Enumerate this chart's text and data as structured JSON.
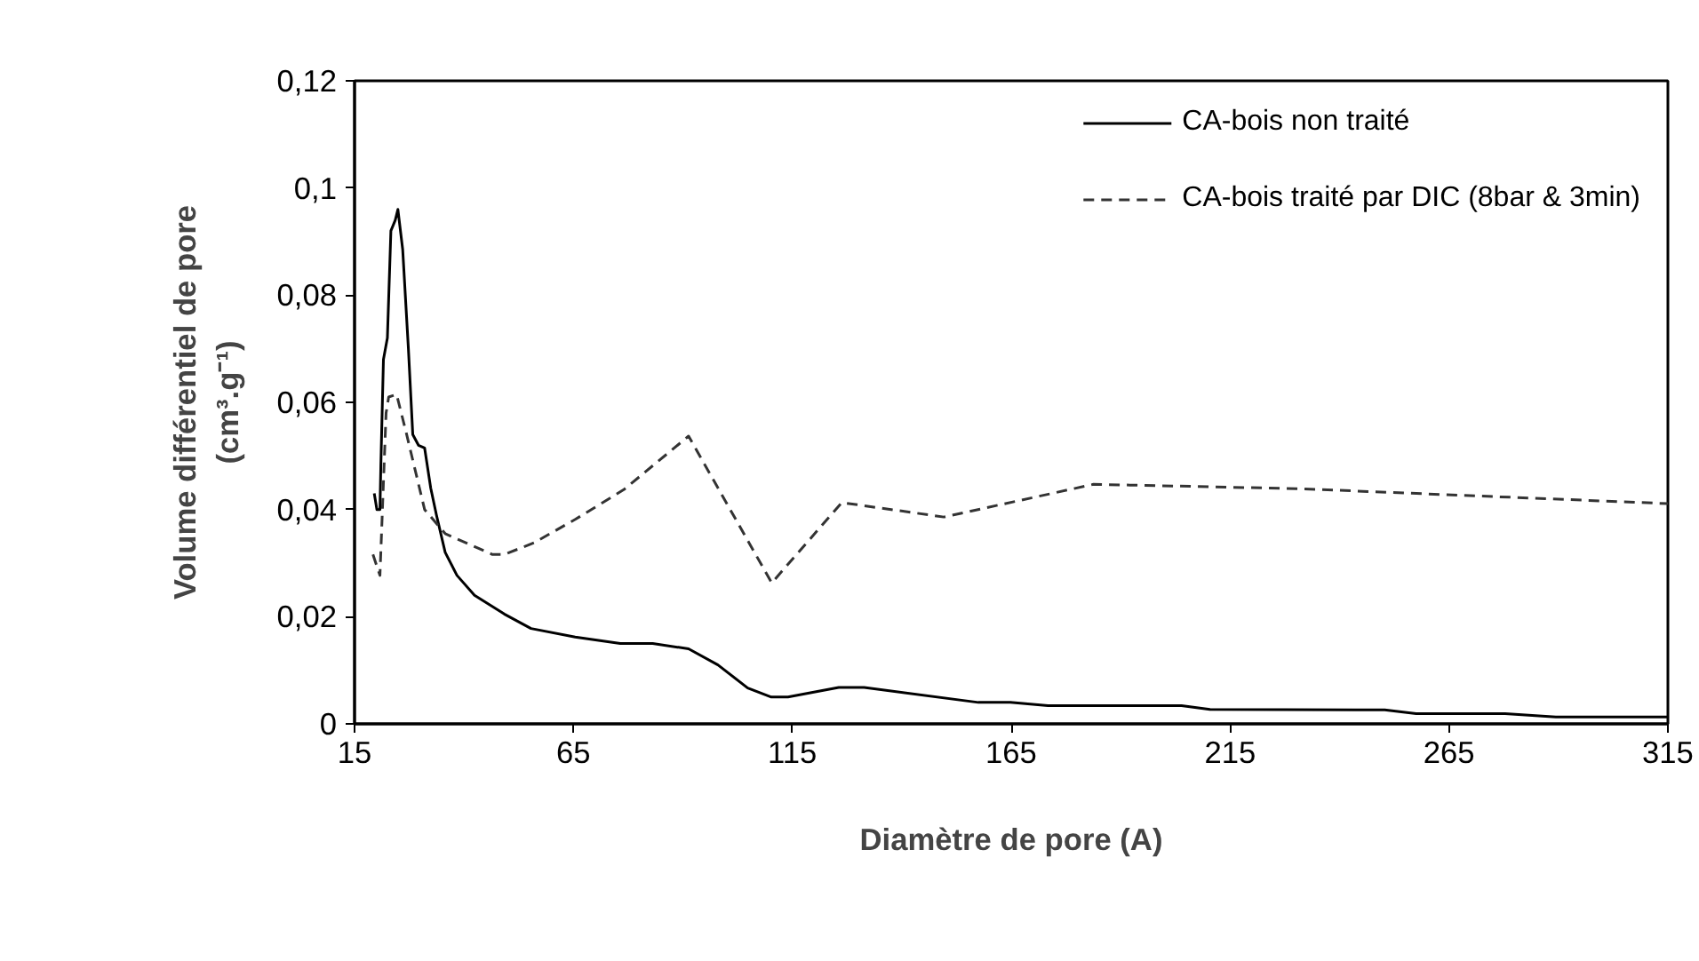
{
  "chart_data": {
    "type": "line",
    "xlabel": "Diamètre de pore (A)",
    "ylabel": "Volume différentiel de pore\n(cm³.g⁻¹)",
    "xlim": [
      15,
      315
    ],
    "ylim": [
      0,
      0.12
    ],
    "xticks": [
      15,
      65,
      115,
      165,
      215,
      265,
      315
    ],
    "yticks": [
      {
        "value": 0,
        "label": "0"
      },
      {
        "value": 0.02,
        "label": "0,02"
      },
      {
        "value": 0.04,
        "label": "0,04"
      },
      {
        "value": 0.06,
        "label": "0,06"
      },
      {
        "value": 0.08,
        "label": "0,08"
      },
      {
        "value": 0.1,
        "label": "0,1"
      },
      {
        "value": 0.12,
        "label": "0,12"
      }
    ],
    "grid": false,
    "legend": "top right",
    "series": [
      {
        "name": "CA-bois non traité",
        "color": "#000000",
        "line_style": "solid",
        "x": [
          19.5,
          20.1,
          20.8,
          21,
          21.6,
          22.5,
          23.3,
          24.3,
          24.9,
          26,
          27.3,
          28.3,
          29.6,
          31,
          32.4,
          33.7,
          35.7,
          38.4,
          42.4,
          49.2,
          55.3,
          65.4,
          75.7,
          83.1,
          91.3,
          98,
          104.8,
          110.2,
          114,
          125.6,
          131.4,
          157.5,
          164.8,
          173.4,
          203.9,
          210.4,
          250.3,
          257.5,
          277.8,
          289.4,
          315
        ],
        "values": [
          0.043,
          0.04,
          0.04,
          0.048,
          0.068,
          0.072,
          0.092,
          0.094,
          0.096,
          0.0885,
          0.07,
          0.054,
          0.052,
          0.0515,
          0.044,
          0.039,
          0.032,
          0.0277,
          0.024,
          0.0205,
          0.0178,
          0.0162,
          0.015,
          0.015,
          0.014,
          0.011,
          0.0067,
          0.005,
          0.005,
          0.0068,
          0.0068,
          0.004,
          0.004,
          0.0034,
          0.0034,
          0.0027,
          0.0026,
          0.0019,
          0.0019,
          0.0013,
          0.0013
        ]
      },
      {
        "name": "CA-bois traité par DIC (8bar & 3min)",
        "color": "#333333",
        "line_style": "dashed",
        "x": [
          19.2,
          20.8,
          22.2,
          22.8,
          24.6,
          26.9,
          31,
          35.7,
          46.5,
          49.2,
          56,
          65.5,
          76.5,
          91.3,
          110.3,
          126.3,
          149.6,
          183.8,
          230.2,
          315
        ],
        "values": [
          0.0316,
          0.0277,
          0.058,
          0.061,
          0.0615,
          0.054,
          0.04,
          0.0355,
          0.0316,
          0.0316,
          0.0338,
          0.0382,
          0.0437,
          0.0537,
          0.0263,
          0.0413,
          0.0386,
          0.0447,
          0.0439,
          0.0411
        ]
      }
    ]
  }
}
